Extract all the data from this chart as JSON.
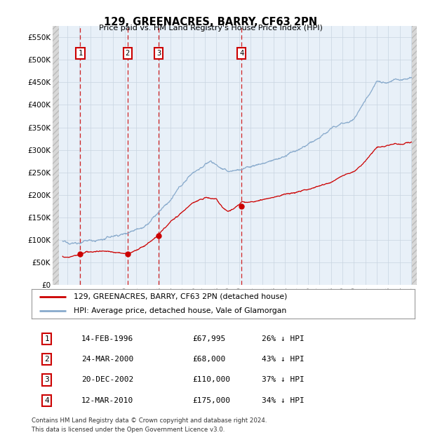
{
  "title": "129, GREENACRES, BARRY, CF63 2PN",
  "subtitle": "Price paid vs. HM Land Registry's House Price Index (HPI)",
  "ylabel_ticks": [
    "£0",
    "£50K",
    "£100K",
    "£150K",
    "£200K",
    "£250K",
    "£300K",
    "£350K",
    "£400K",
    "£450K",
    "£500K",
    "£550K"
  ],
  "ytick_values": [
    0,
    50000,
    100000,
    150000,
    200000,
    250000,
    300000,
    350000,
    400000,
    450000,
    500000,
    550000
  ],
  "xmin": 1993.7,
  "xmax": 2025.5,
  "ymin": 0,
  "ymax": 575000,
  "sale_dates": [
    1996.12,
    2000.23,
    2002.97,
    2010.19
  ],
  "sale_prices": [
    67995,
    68000,
    110000,
    175000
  ],
  "sale_labels": [
    "1",
    "2",
    "3",
    "4"
  ],
  "property_color": "#cc0000",
  "hpi_color": "#88aacc",
  "legend_property": "129, GREENACRES, BARRY, CF63 2PN (detached house)",
  "legend_hpi": "HPI: Average price, detached house, Vale of Glamorgan",
  "table_rows": [
    [
      "1",
      "14-FEB-1996",
      "£67,995",
      "26% ↓ HPI"
    ],
    [
      "2",
      "24-MAR-2000",
      "£68,000",
      "43% ↓ HPI"
    ],
    [
      "3",
      "20-DEC-2002",
      "£110,000",
      "37% ↓ HPI"
    ],
    [
      "4",
      "12-MAR-2010",
      "£175,000",
      "34% ↓ HPI"
    ]
  ],
  "footer": "Contains HM Land Registry data © Crown copyright and database right 2024.\nThis data is licensed under the Open Government Licence v3.0."
}
